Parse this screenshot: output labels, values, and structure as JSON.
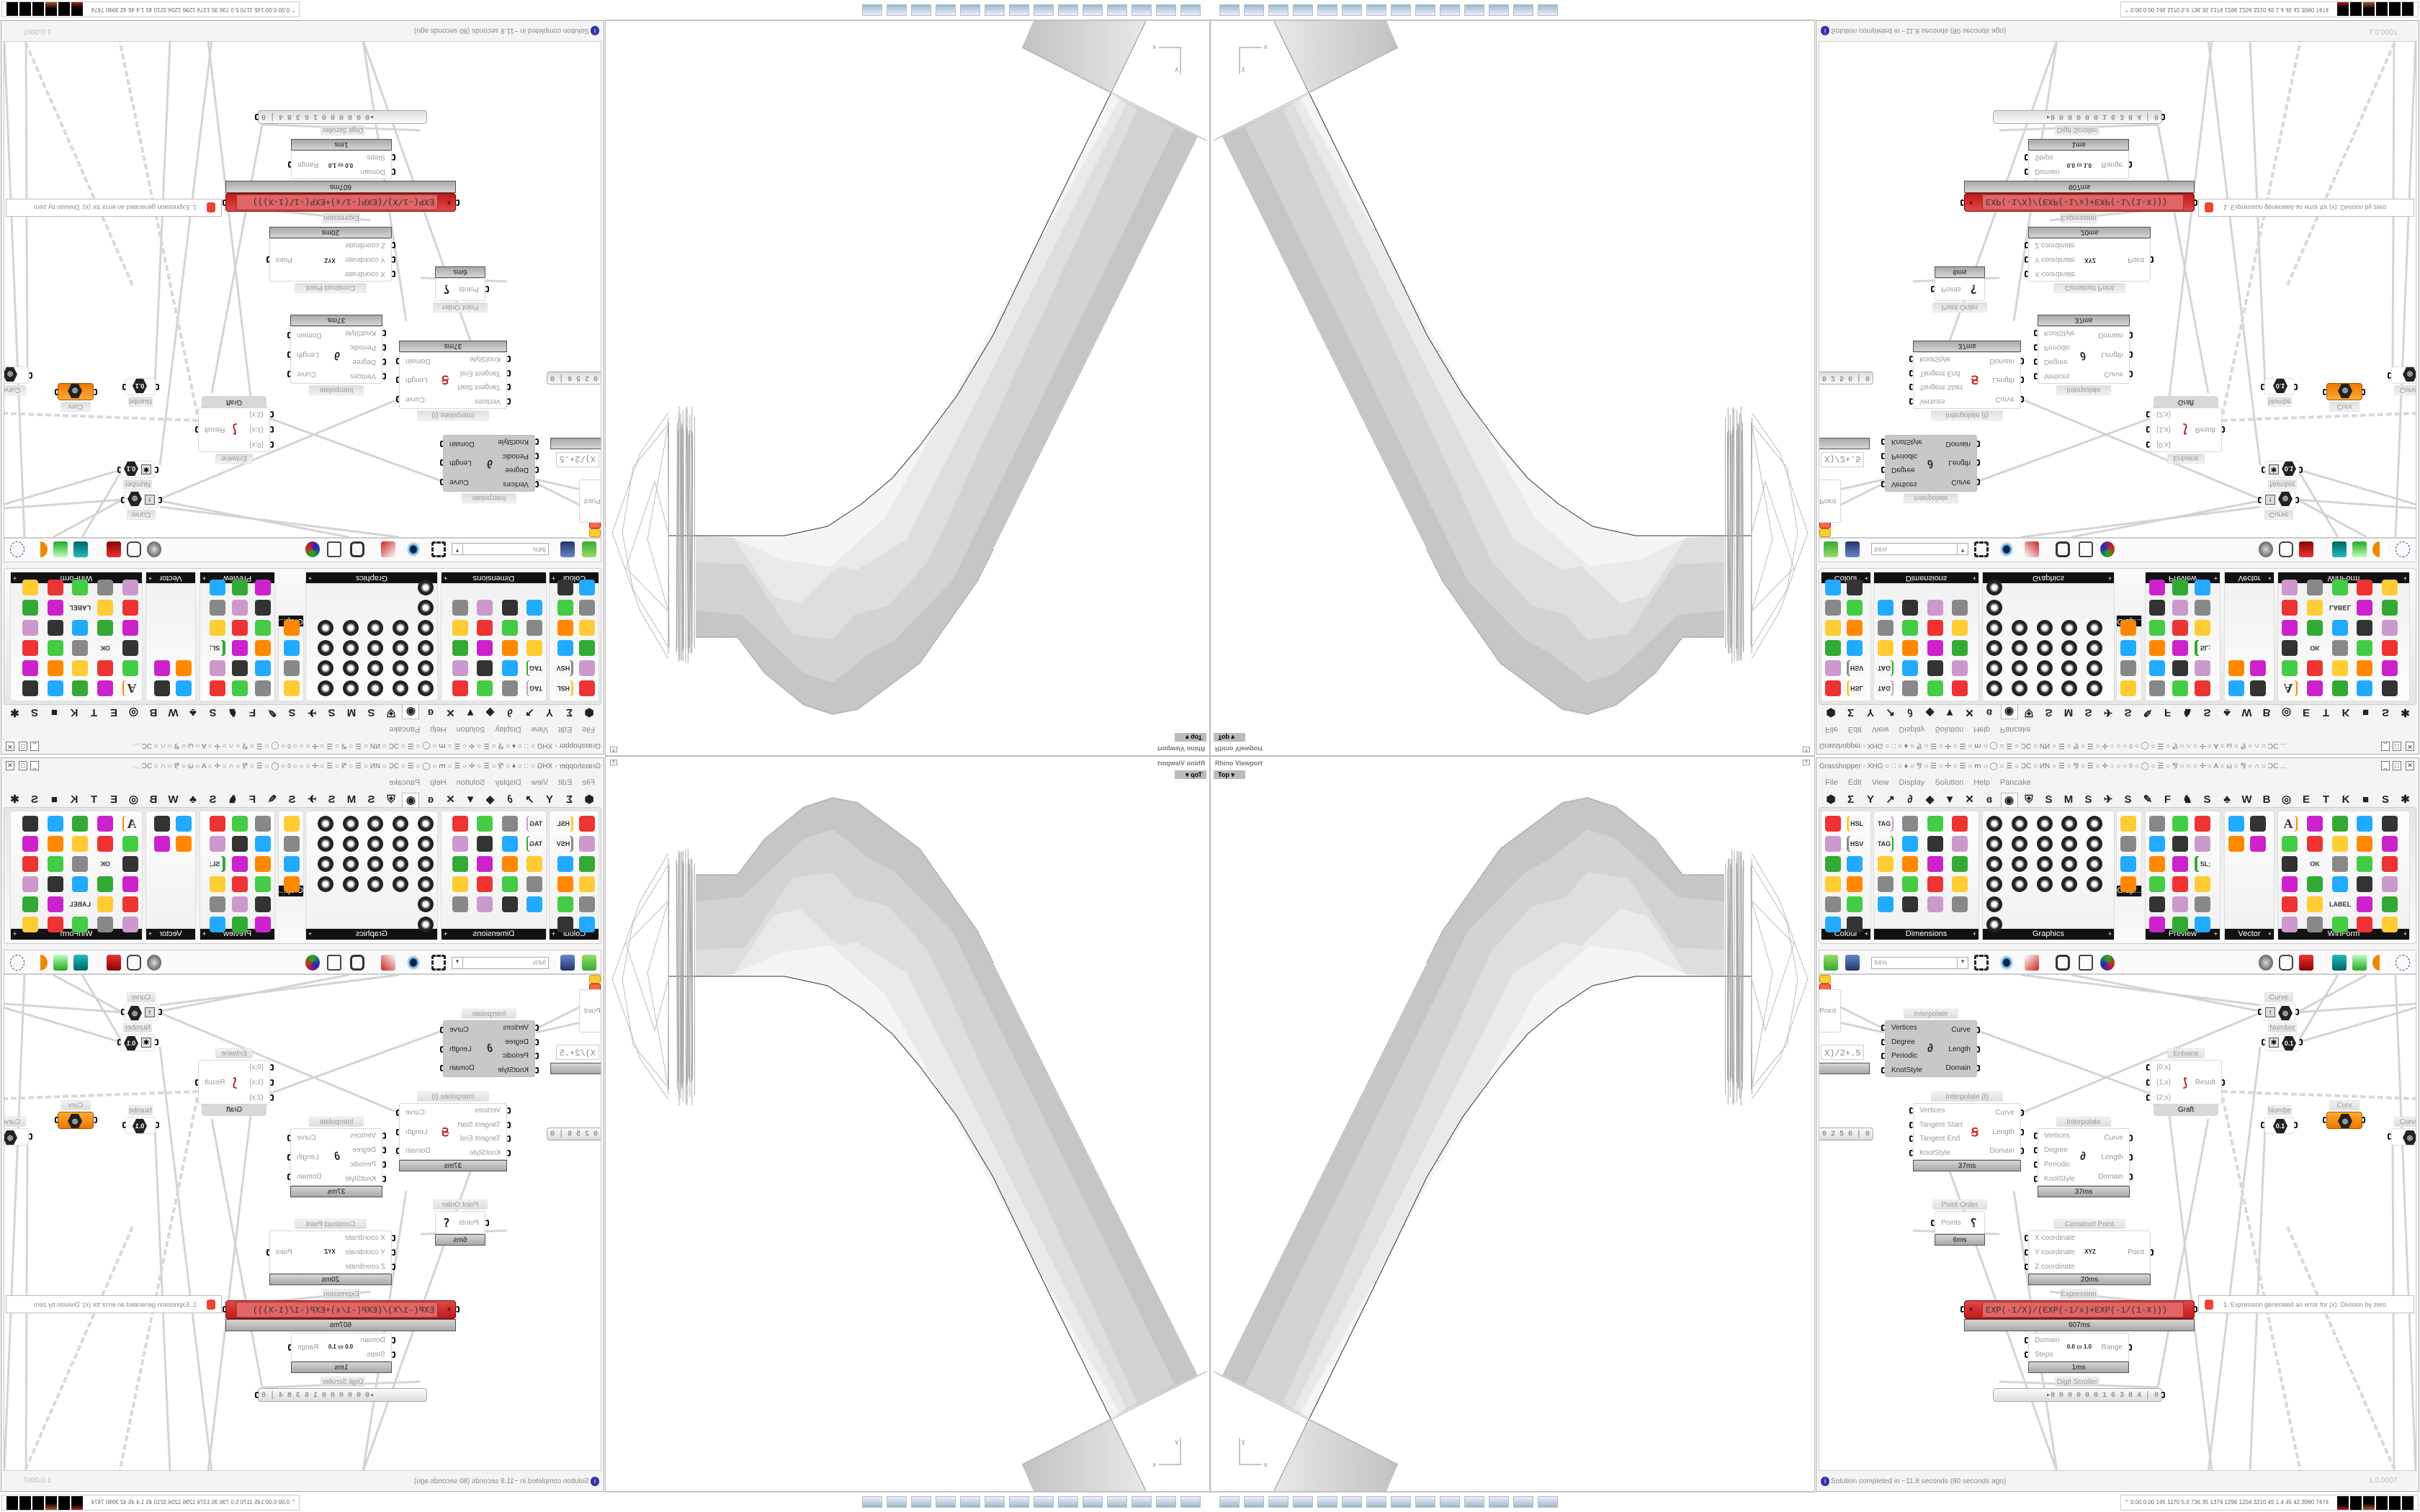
{
  "viewport": {
    "title": "Rhino Viewport",
    "view_name": "Top",
    "axis_x": "x",
    "axis_y": "y"
  },
  "taskbar": {
    "icons": [
      "rhino-save-icon",
      "firefox-icon",
      "blender-icon",
      "inkscape-icon",
      "window-icon",
      "window-icon",
      "window-icon",
      "window-icon",
      "floppy-64-icon",
      "monitor-icon",
      "speaker-icon",
      "printer-icon",
      "printer-icon",
      "window-icon"
    ]
  },
  "gh": {
    "title": "Grasshopper - XHG",
    "title_glyphs": "○ ∷ ○ ♦ ○ ⅋ ○ ☰ ○ ✢ ○ ☰ ○ ⅿ ○ ◯ ○ ☰ ○ ϽϹ ○ ИN ○ ☰ ○ ⅋ ○ ☰ ○ ✢ ○ ○ ○ ◊ ○ ◯ ○ ☰ ○ ⅋ ○ ∩ ○ ✢ ○ A ○ ω ○ ⅋ ○ ∩ ○ ϽϹ ...",
    "menu": [
      "File",
      "Edit",
      "View",
      "Display",
      "Solution",
      "Help",
      "Pancake"
    ],
    "tabs": [
      "⬢",
      "Σ",
      "Y",
      "↗",
      "∂",
      "◆",
      "▼",
      "✕",
      "ɞ",
      "◉",
      "⛨",
      "S",
      "M",
      "S",
      "✈",
      "S",
      "✎",
      "F",
      "♞",
      "S",
      "♣",
      "W",
      "B",
      "◎",
      "E",
      "T",
      "K",
      "■",
      "S",
      "✱"
    ],
    "active_tab_index": 9,
    "ribbon": {
      "panels": [
        "Colour",
        "Dimensions",
        "Graphics",
        "Grap...",
        "Preview",
        "Vector",
        "WinForm"
      ],
      "icon_labels": {
        "hsl": "HSL",
        "hsv": "HSV",
        "tag": "TAG",
        "sl": "SL;",
        "ok": "OK",
        "label": "LABEL",
        "text": "A"
      }
    },
    "canvas_toolbar": {
      "zoom": "94%"
    },
    "nodes": {
      "point_partial": {
        "output": "Point"
      },
      "expression_partial": {
        "formula": "X)/2+.5"
      },
      "scroller_partial": {
        "value": "0 0 0 2 5 6 │ 0"
      },
      "interpolate_a": {
        "label": "Interpolate",
        "inputs": [
          "Vertices",
          "Degree",
          "Periodic",
          "KnotStyle"
        ],
        "outputs": [
          "Curve",
          "Length",
          "Domain"
        ]
      },
      "interpolate_t": {
        "label": "Interpolate (t)",
        "inputs": [
          "Vertices",
          "Tangent Start",
          "Tangent End",
          "KnotStyle"
        ],
        "outputs": [
          "Curve",
          "Length",
          "Domain"
        ],
        "time": "37ms"
      },
      "interpolate_b": {
        "label": "Interpolate",
        "inputs": [
          "Vertices",
          "Degree",
          "Periodic",
          "KnotStyle"
        ],
        "outputs": [
          "Curve",
          "Length",
          "Domain"
        ],
        "time": "37ms"
      },
      "entwine": {
        "label": "Entwine",
        "inputs": [
          "{0;x}",
          "{1;x}",
          "{2;x}"
        ],
        "outputs": [
          "Result"
        ],
        "time": "Graft"
      },
      "curve_a": {
        "label": "Curve"
      },
      "number_a": {
        "label": "Number",
        "value": "0.1"
      },
      "number_b": {
        "label": "Number",
        "value": "0.1"
      },
      "curve_orange": {
        "label": "Curv"
      },
      "curve_b": {
        "label": "Curve"
      },
      "point_order": {
        "label": "Point Order",
        "inputs": [
          "Points"
        ],
        "time": "6ms"
      },
      "construct_point": {
        "label": "Construct Point",
        "inputs": [
          "X coordinate",
          "Y coordinate",
          "Z coordinate"
        ],
        "outputs": [
          "Point"
        ],
        "icon": "XYZ",
        "time": "20ms"
      },
      "expression": {
        "label": "Expression",
        "input": "x",
        "formula": "EXP(-1/X)/(EXP(-1/x)+EXP(-1/(1-X)))",
        "time": "607ms"
      },
      "range": {
        "inputs": [
          "Domain",
          "Steps"
        ],
        "outputs": [
          "Range"
        ],
        "icon": "0.0 ▭ 1.0",
        "time": "1ms"
      },
      "digit_scroller": {
        "label": "Digit Scroller",
        "value": "▸0 0 0 0 0 0 1 6 3 8 4 │ 0"
      }
    },
    "error_tooltip": "1. Expression generated an error for (x): Division by zero",
    "status": "Solution completed in ~11.8 seconds (80 seconds ago)",
    "version": "1.0.0007"
  },
  "tray": {
    "stats": "0.00 0.00 145 1170 5.0 736 35 1374 1296 1204 3210 45 1.4 45 42 3990 7474"
  },
  "colors": {
    "error_red": "#d02020",
    "selected_orange": "#f0901c",
    "panel_label": "#111111",
    "wire": "#d0d0d0"
  }
}
